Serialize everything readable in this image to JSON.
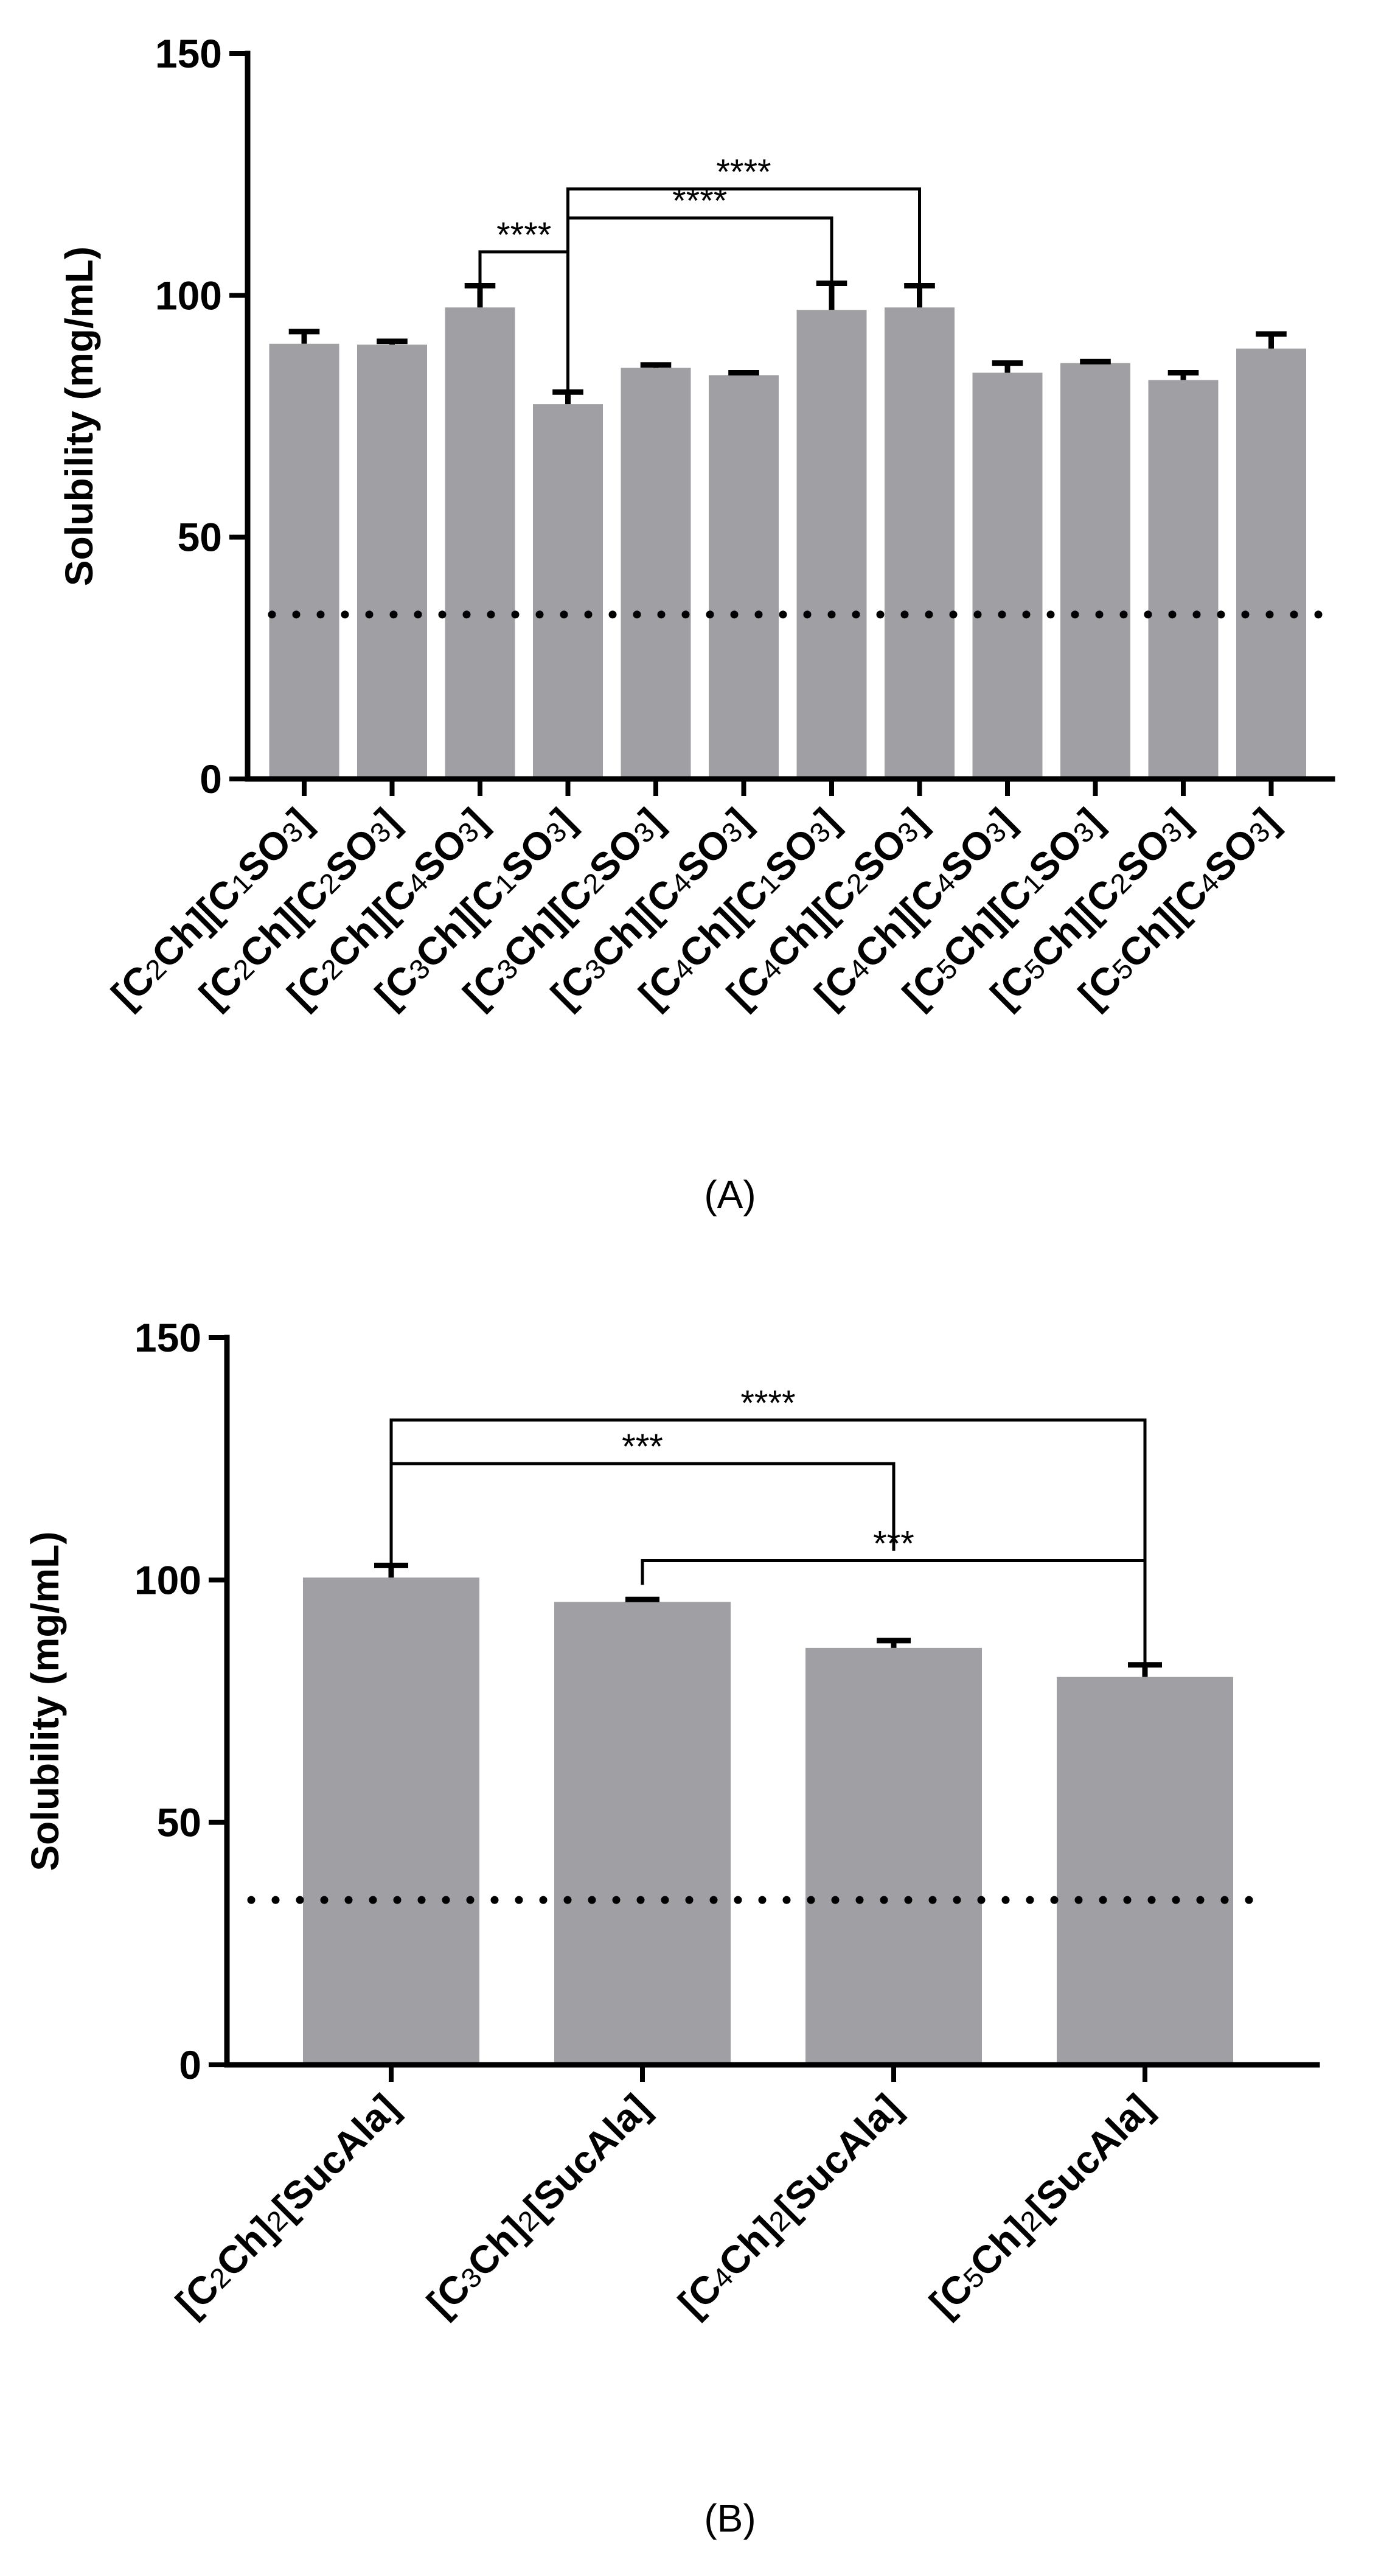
{
  "chart_data": [
    {
      "type": "bar",
      "panel_label": "(A)",
      "ylabel": "Solubility (mg/mL)",
      "xlabel": "",
      "ylim": [
        0,
        150
      ],
      "yticks": [
        "0",
        "50",
        "100",
        "150"
      ],
      "yticks_values": [
        0,
        50,
        100,
        150
      ],
      "reference_line": 34,
      "categories": [
        {
          "label": "[C2Ch][C1SO3]",
          "parts": [
            [
              "[C",
              "b"
            ],
            [
              "2",
              "s"
            ],
            [
              "Ch][C",
              "b"
            ],
            [
              "1",
              "s"
            ],
            [
              "SO",
              "b"
            ],
            [
              "3",
              "s"
            ],
            [
              "]",
              "b"
            ]
          ]
        },
        {
          "label": "[C2Ch][C2SO3]",
          "parts": [
            [
              "[C",
              "b"
            ],
            [
              "2",
              "s"
            ],
            [
              "Ch][C",
              "b"
            ],
            [
              "2",
              "s"
            ],
            [
              "SO",
              "b"
            ],
            [
              "3",
              "s"
            ],
            [
              "]",
              "b"
            ]
          ]
        },
        {
          "label": "[C2Ch][C4SO3]",
          "parts": [
            [
              "[C",
              "b"
            ],
            [
              "2",
              "s"
            ],
            [
              "Ch][C",
              "b"
            ],
            [
              "4",
              "s"
            ],
            [
              "SO",
              "b"
            ],
            [
              "3",
              "s"
            ],
            [
              "]",
              "b"
            ]
          ]
        },
        {
          "label": "[C3Ch][C1SO3]",
          "parts": [
            [
              "[C",
              "b"
            ],
            [
              "3",
              "s"
            ],
            [
              "Ch][C",
              "b"
            ],
            [
              "1",
              "s"
            ],
            [
              "SO",
              "b"
            ],
            [
              "3",
              "s"
            ],
            [
              "]",
              "b"
            ]
          ]
        },
        {
          "label": "[C3Ch][C2SO3]",
          "parts": [
            [
              "[C",
              "b"
            ],
            [
              "3",
              "s"
            ],
            [
              "Ch][C",
              "b"
            ],
            [
              "2",
              "s"
            ],
            [
              "SO",
              "b"
            ],
            [
              "3",
              "s"
            ],
            [
              "]",
              "b"
            ]
          ]
        },
        {
          "label": "[C3Ch][C4SO3]",
          "parts": [
            [
              "[C",
              "b"
            ],
            [
              "3",
              "s"
            ],
            [
              "Ch][C",
              "b"
            ],
            [
              "4",
              "s"
            ],
            [
              "SO",
              "b"
            ],
            [
              "3",
              "s"
            ],
            [
              "]",
              "b"
            ]
          ]
        },
        {
          "label": "[C4Ch][C1SO3]",
          "parts": [
            [
              "[C",
              "b"
            ],
            [
              "4",
              "s"
            ],
            [
              "Ch][C",
              "b"
            ],
            [
              "1",
              "s"
            ],
            [
              "SO",
              "b"
            ],
            [
              "3",
              "s"
            ],
            [
              "]",
              "b"
            ]
          ]
        },
        {
          "label": "[C4Ch][C2SO3]",
          "parts": [
            [
              "[C",
              "b"
            ],
            [
              "4",
              "s"
            ],
            [
              "Ch][C",
              "b"
            ],
            [
              "2",
              "s"
            ],
            [
              "SO",
              "b"
            ],
            [
              "3",
              "s"
            ],
            [
              "]",
              "b"
            ]
          ]
        },
        {
          "label": "[C4Ch][C4SO3]",
          "parts": [
            [
              "[C",
              "b"
            ],
            [
              "4",
              "s"
            ],
            [
              "Ch][C",
              "b"
            ],
            [
              "4",
              "s"
            ],
            [
              "SO",
              "b"
            ],
            [
              "3",
              "s"
            ],
            [
              "]",
              "b"
            ]
          ]
        },
        {
          "label": "[C5Ch][C1SO3]",
          "parts": [
            [
              "[C",
              "b"
            ],
            [
              "5",
              "s"
            ],
            [
              "Ch][C",
              "b"
            ],
            [
              "1",
              "s"
            ],
            [
              "SO",
              "b"
            ],
            [
              "3",
              "s"
            ],
            [
              "]",
              "b"
            ]
          ]
        },
        {
          "label": "[C5Ch][C2SO3]",
          "parts": [
            [
              "[C",
              "b"
            ],
            [
              "5",
              "s"
            ],
            [
              "Ch][C",
              "b"
            ],
            [
              "2",
              "s"
            ],
            [
              "SO",
              "b"
            ],
            [
              "3",
              "s"
            ],
            [
              "]",
              "b"
            ]
          ]
        },
        {
          "label": "[C5Ch][C4SO3]",
          "parts": [
            [
              "[C",
              "b"
            ],
            [
              "5",
              "s"
            ],
            [
              "Ch][C",
              "b"
            ],
            [
              "4",
              "s"
            ],
            [
              "SO",
              "b"
            ],
            [
              "3",
              "s"
            ],
            [
              "]",
              "b"
            ]
          ]
        }
      ],
      "values": [
        90,
        89.8,
        97.5,
        77.5,
        85,
        83.5,
        97,
        97.5,
        84,
        86,
        82.5,
        89
      ],
      "errors": [
        2.5,
        0.7,
        4.5,
        2.5,
        0.6,
        0.5,
        5.5,
        4.5,
        2.0,
        0.3,
        1.5,
        3.0
      ],
      "significance": [
        {
          "from": 2,
          "to": 3,
          "label": "****",
          "level": 109,
          "left_drop": 101,
          "right_drop": 80
        },
        {
          "from": 3,
          "to": 6,
          "label": "****",
          "level": 116,
          "left_drop": 80,
          "right_drop": 103
        },
        {
          "from": 3,
          "to": 7,
          "label": "****",
          "level": 122,
          "left_drop": 80,
          "right_drop": 102
        }
      ]
    },
    {
      "type": "bar",
      "panel_label": "(B)",
      "ylabel": "Solubility (mg/mL)",
      "xlabel": "",
      "ylim": [
        0,
        150
      ],
      "yticks": [
        "0",
        "50",
        "100",
        "150"
      ],
      "yticks_values": [
        0,
        50,
        100,
        150
      ],
      "reference_line": 34,
      "categories": [
        {
          "label": "[C2Ch]2[SucAla]",
          "parts": [
            [
              "[C",
              "b"
            ],
            [
              "2",
              "s"
            ],
            [
              "Ch]",
              "b"
            ],
            [
              "2",
              "s"
            ],
            [
              "[SucAla]",
              "b"
            ]
          ]
        },
        {
          "label": "[C3Ch]2[SucAla]",
          "parts": [
            [
              "[C",
              "b"
            ],
            [
              "3",
              "s"
            ],
            [
              "Ch]",
              "b"
            ],
            [
              "2",
              "s"
            ],
            [
              "[SucAla]",
              "b"
            ]
          ]
        },
        {
          "label": "[C4Ch]2[SucAla]",
          "parts": [
            [
              "[C",
              "b"
            ],
            [
              "4",
              "s"
            ],
            [
              "Ch]",
              "b"
            ],
            [
              "2",
              "s"
            ],
            [
              "[SucAla]",
              "b"
            ]
          ]
        },
        {
          "label": "[C5Ch]2[SucAla]",
          "parts": [
            [
              "[C",
              "b"
            ],
            [
              "5",
              "s"
            ],
            [
              "Ch]",
              "b"
            ],
            [
              "2",
              "s"
            ],
            [
              "[SucAla]",
              "b"
            ]
          ]
        }
      ],
      "values": [
        100.5,
        95.5,
        86,
        80
      ],
      "errors": [
        2.5,
        0.5,
        1.5,
        2.5
      ],
      "significance": [
        {
          "from": 0,
          "to": 3,
          "label": "****",
          "level": 133,
          "left_drop": 103,
          "right_drop": 83
        },
        {
          "from": 0,
          "to": 2,
          "label": "***",
          "level": 124,
          "left_drop": 103,
          "right_drop": 106
        },
        {
          "from": 1,
          "to": 3,
          "label": "***",
          "level": 104,
          "left_drop": 99,
          "right_drop": 104
        }
      ]
    }
  ]
}
